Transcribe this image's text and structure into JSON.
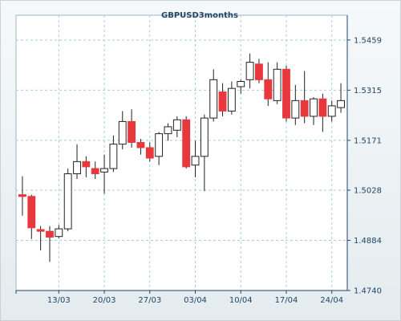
{
  "chart_data": {
    "type": "candlestick",
    "title": "GBPUSD3months",
    "xlabel": "",
    "ylabel": "",
    "ylim": [
      1.474,
      1.553
    ],
    "y_ticks": [
      "1.5459",
      "1.5315",
      "1.5171",
      "1.5028",
      "1.4884",
      "1.4740"
    ],
    "y_tick_values": [
      1.5459,
      1.5315,
      1.5171,
      1.5028,
      1.4884,
      1.474
    ],
    "x_ticks": [
      {
        "label": "13/03",
        "index": 4
      },
      {
        "label": "20/03",
        "index": 9
      },
      {
        "label": "27/03",
        "index": 14
      },
      {
        "label": "03/04",
        "index": 19
      },
      {
        "label": "10/04",
        "index": 24
      },
      {
        "label": "17/04",
        "index": 29
      },
      {
        "label": "24/04",
        "index": 34
      }
    ],
    "grid": true,
    "up_color": "#ffffff",
    "down_color": "#e8383d",
    "candles": [
      {
        "o": 1.5015,
        "h": 1.5068,
        "l": 1.4955,
        "c": 1.501
      },
      {
        "o": 1.501,
        "h": 1.5015,
        "l": 1.4888,
        "c": 1.492
      },
      {
        "o": 1.4915,
        "h": 1.4925,
        "l": 1.4855,
        "c": 1.491
      },
      {
        "o": 1.491,
        "h": 1.4925,
        "l": 1.4822,
        "c": 1.4893
      },
      {
        "o": 1.4895,
        "h": 1.4928,
        "l": 1.489,
        "c": 1.4917
      },
      {
        "o": 1.4917,
        "h": 1.509,
        "l": 1.491,
        "c": 1.5075
      },
      {
        "o": 1.5075,
        "h": 1.516,
        "l": 1.506,
        "c": 1.511
      },
      {
        "o": 1.511,
        "h": 1.5125,
        "l": 1.5065,
        "c": 1.5095
      },
      {
        "o": 1.509,
        "h": 1.511,
        "l": 1.506,
        "c": 1.5075
      },
      {
        "o": 1.508,
        "h": 1.513,
        "l": 1.5018,
        "c": 1.509
      },
      {
        "o": 1.509,
        "h": 1.5185,
        "l": 1.508,
        "c": 1.516
      },
      {
        "o": 1.516,
        "h": 1.5255,
        "l": 1.5145,
        "c": 1.5225
      },
      {
        "o": 1.5225,
        "h": 1.526,
        "l": 1.515,
        "c": 1.5165
      },
      {
        "o": 1.5165,
        "h": 1.5175,
        "l": 1.513,
        "c": 1.515
      },
      {
        "o": 1.515,
        "h": 1.5165,
        "l": 1.511,
        "c": 1.512
      },
      {
        "o": 1.5125,
        "h": 1.5195,
        "l": 1.51,
        "c": 1.519
      },
      {
        "o": 1.519,
        "h": 1.522,
        "l": 1.517,
        "c": 1.521
      },
      {
        "o": 1.52,
        "h": 1.524,
        "l": 1.518,
        "c": 1.523
      },
      {
        "o": 1.523,
        "h": 1.524,
        "l": 1.509,
        "c": 1.5095
      },
      {
        "o": 1.51,
        "h": 1.517,
        "l": 1.5065,
        "c": 1.5125
      },
      {
        "o": 1.5125,
        "h": 1.5245,
        "l": 1.5025,
        "c": 1.5235
      },
      {
        "o": 1.5235,
        "h": 1.5375,
        "l": 1.5225,
        "c": 1.5345
      },
      {
        "o": 1.531,
        "h": 1.5335,
        "l": 1.524,
        "c": 1.5255
      },
      {
        "o": 1.5255,
        "h": 1.534,
        "l": 1.5245,
        "c": 1.532
      },
      {
        "o": 1.5325,
        "h": 1.5345,
        "l": 1.5305,
        "c": 1.534
      },
      {
        "o": 1.5345,
        "h": 1.542,
        "l": 1.532,
        "c": 1.5395
      },
      {
        "o": 1.539,
        "h": 1.5405,
        "l": 1.5335,
        "c": 1.5345
      },
      {
        "o": 1.5345,
        "h": 1.5395,
        "l": 1.527,
        "c": 1.529
      },
      {
        "o": 1.5285,
        "h": 1.5395,
        "l": 1.5275,
        "c": 1.5375
      },
      {
        "o": 1.5375,
        "h": 1.5385,
        "l": 1.5225,
        "c": 1.5235
      },
      {
        "o": 1.5235,
        "h": 1.533,
        "l": 1.5215,
        "c": 1.5285
      },
      {
        "o": 1.5285,
        "h": 1.537,
        "l": 1.522,
        "c": 1.524
      },
      {
        "o": 1.524,
        "h": 1.5295,
        "l": 1.5215,
        "c": 1.529
      },
      {
        "o": 1.529,
        "h": 1.5305,
        "l": 1.5195,
        "c": 1.524
      },
      {
        "o": 1.524,
        "h": 1.5285,
        "l": 1.5225,
        "c": 1.527
      },
      {
        "o": 1.5265,
        "h": 1.5335,
        "l": 1.525,
        "c": 1.5285
      }
    ]
  }
}
